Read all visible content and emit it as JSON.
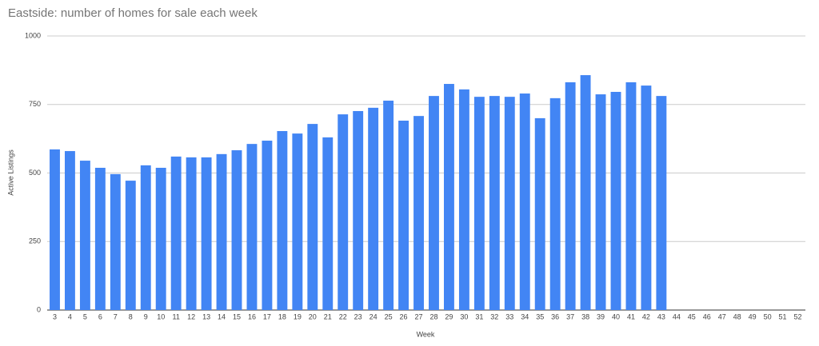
{
  "chart_data": {
    "type": "bar",
    "title": "Eastside: number of homes for sale each week",
    "x_label": "Week",
    "y_label": "Active Listings",
    "categories": [
      "3",
      "4",
      "5",
      "6",
      "7",
      "8",
      "9",
      "10",
      "11",
      "12",
      "13",
      "14",
      "15",
      "16",
      "17",
      "18",
      "19",
      "20",
      "21",
      "22",
      "23",
      "24",
      "25",
      "26",
      "27",
      "28",
      "29",
      "30",
      "31",
      "32",
      "33",
      "34",
      "35",
      "36",
      "37",
      "38",
      "39",
      "40",
      "41",
      "42",
      "43",
      "44",
      "45",
      "46",
      "47",
      "48",
      "49",
      "50",
      "51",
      "52"
    ],
    "values": [
      586,
      580,
      545,
      519,
      496,
      472,
      528,
      519,
      560,
      557,
      557,
      569,
      583,
      606,
      618,
      653,
      644,
      679,
      630,
      714,
      726,
      738,
      764,
      691,
      708,
      781,
      825,
      805,
      778,
      781,
      778,
      790,
      700,
      773,
      831,
      857,
      787,
      796,
      831,
      819,
      781,
      null,
      null,
      null,
      null,
      null,
      null,
      null,
      null,
      null
    ],
    "color": "#4285f4",
    "ylim": [
      0,
      1000
    ],
    "yticks": [
      0,
      250,
      500,
      750,
      1000
    ],
    "grid": true
  }
}
